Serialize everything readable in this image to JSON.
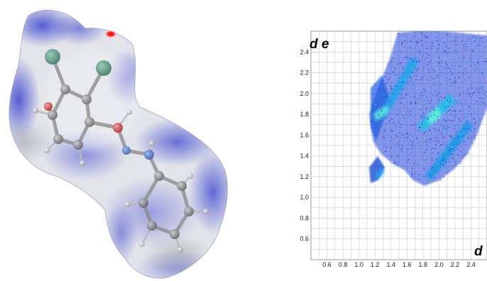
{
  "molecule_surface": {
    "description_icon": "hirshfeld-surface-icon",
    "colors": {
      "surface_light": "#e4e6ec",
      "surface_blue": "#3e46cc",
      "hotspot_red": "#ff0000",
      "atom_chlorine": "#4a8a72",
      "atom_oxygen": "#d22222",
      "atom_nitrogen": "#3a62c8",
      "atom_carbon": "#6e6e6e",
      "atom_hydrogen": "#d8d8d8"
    }
  },
  "fingerprint_plot": {
    "x_axis_letter": "d",
    "y_axis_letters": "d e",
    "x_ticks": [
      "0.6",
      "0.8",
      "1.0",
      "1.2",
      "1.4",
      "1.6",
      "1.8",
      "2.0",
      "2.2",
      "2.4"
    ],
    "y_ticks": [
      "0.6",
      "0.8",
      "1.0",
      "1.2",
      "1.4",
      "1.6",
      "1.8",
      "2.0",
      "2.2",
      "2.4"
    ],
    "colors": {
      "grid": "#c8c8c8",
      "low_density": "#1a3fd6",
      "mid_density": "#1a9ae6",
      "high_density": "#5ef0d8"
    }
  }
}
